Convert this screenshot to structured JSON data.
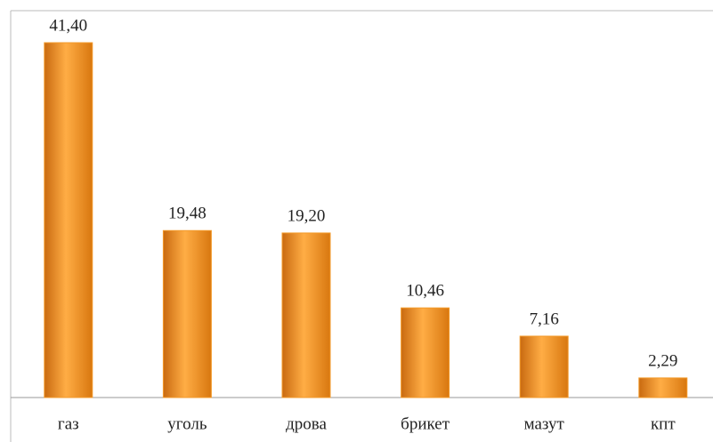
{
  "chart_data": {
    "type": "bar",
    "categories": [
      "газ",
      "уголь",
      "дрова",
      "брикет",
      "мазут",
      "кпт"
    ],
    "values": [
      41.4,
      19.48,
      19.2,
      10.46,
      7.16,
      2.29
    ],
    "value_labels": [
      "41,40",
      "19,48",
      "19,20",
      "10,46",
      "7,16",
      "2,29"
    ],
    "color": "#f39a2a"
  }
}
